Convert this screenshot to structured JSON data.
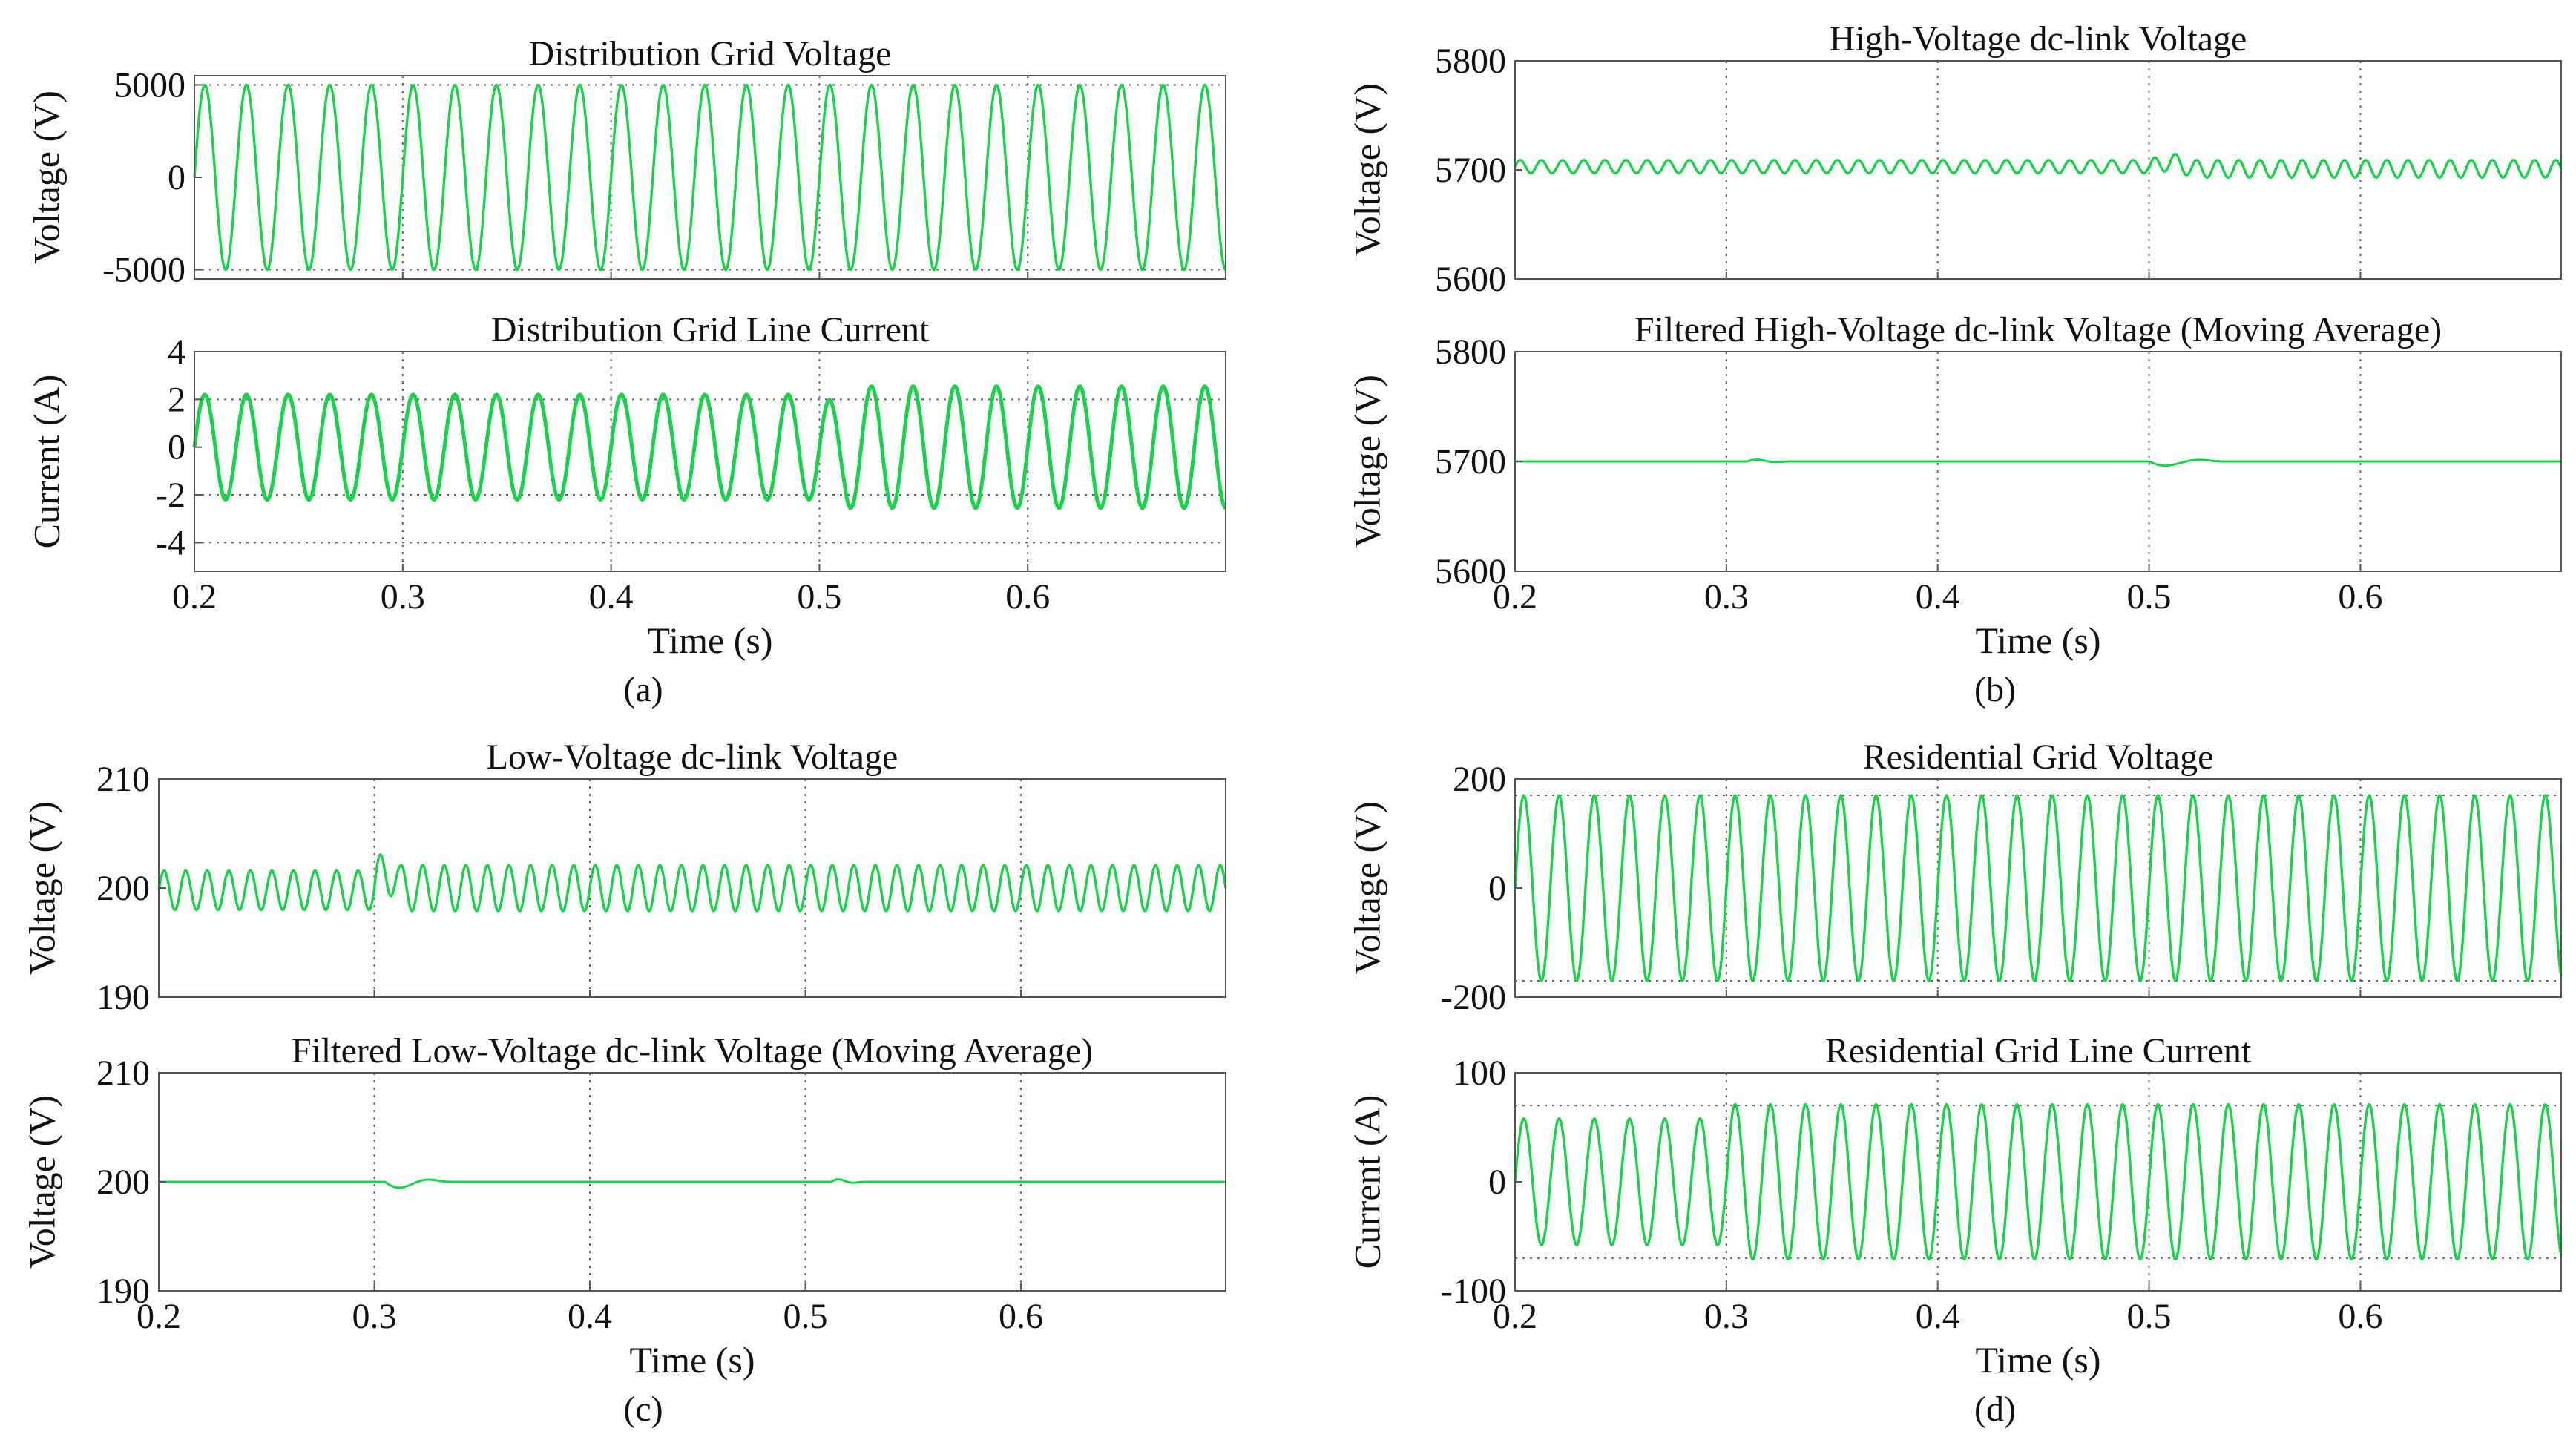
{
  "colors": {
    "trace": "#19d24a",
    "frame": "#555555",
    "grid": "#666666"
  },
  "panel_labels": [
    "(a)",
    "(b)",
    "(c)",
    "(d)"
  ],
  "chart_data": [
    {
      "id": "a1",
      "type": "line",
      "title": "Distribution Grid Voltage",
      "ylabel": "Voltage (V)",
      "xlabel": "",
      "xlim": [
        0.2,
        0.695
      ],
      "ylim": [
        -5500,
        5500
      ],
      "xticks": [
        0.2,
        0.3,
        0.4,
        0.5,
        0.6
      ],
      "xtick_labels": [],
      "yticks": [
        5000,
        0,
        -5000
      ],
      "ytick_labels": [
        "5000",
        "0",
        "-5000"
      ],
      "ygrid": [
        5000,
        -5000
      ],
      "series": [
        {
          "name": "grid voltage",
          "kind": "sine",
          "freq_hz": 50,
          "segments": [
            {
              "from": 0.2,
              "to": 0.695,
              "amplitude": 5000,
              "offset": 0
            }
          ]
        }
      ]
    },
    {
      "id": "a2",
      "type": "line",
      "title": "Distribution Grid Line Current",
      "ylabel": "Current (A)",
      "xlabel": "Time (s)",
      "xlim": [
        0.2,
        0.695
      ],
      "ylim": [
        -5.2,
        4
      ],
      "xticks": [
        0.2,
        0.3,
        0.4,
        0.5,
        0.6
      ],
      "xtick_labels": [
        "0.2",
        "0.3",
        "0.4",
        "0.5",
        "0.6"
      ],
      "yticks": [
        4,
        2,
        0,
        -2,
        -4
      ],
      "ytick_labels": [
        "4",
        "2",
        "0",
        "-2",
        "-4"
      ],
      "ygrid": [
        2,
        -2,
        -4
      ],
      "series": [
        {
          "name": "line current",
          "kind": "sine",
          "freq_hz": 50,
          "segments": [
            {
              "from": 0.2,
              "to": 0.5,
              "amplitude": 2.2,
              "offset": 0
            },
            {
              "from": 0.5,
              "to": 0.695,
              "amplitude": 2.55,
              "offset": 0
            }
          ],
          "transients": [
            {
              "t": 0.5,
              "duration": 0.012,
              "magnitude": -0.6,
              "kind": "bump"
            }
          ]
        }
      ]
    },
    {
      "id": "b1",
      "type": "line",
      "title": "High-Voltage dc-link Voltage",
      "ylabel": "Voltage (V)",
      "xlabel": "",
      "xlim": [
        0.2,
        0.695
      ],
      "ylim": [
        5600,
        5800
      ],
      "xticks": [
        0.2,
        0.3,
        0.4,
        0.5,
        0.6
      ],
      "xtick_labels": [],
      "yticks": [
        5800,
        5700,
        5600
      ],
      "ytick_labels": [
        "5800",
        "5700",
        "5600"
      ],
      "ygrid": [],
      "series": [
        {
          "name": "hv dc-link",
          "kind": "sine",
          "freq_hz": 100,
          "segments": [
            {
              "from": 0.2,
              "to": 0.5,
              "amplitude": 6,
              "offset": 5703
            },
            {
              "from": 0.5,
              "to": 0.695,
              "amplitude": 8,
              "offset": 5701
            }
          ],
          "transients": [
            {
              "t": 0.5,
              "duration": 0.02,
              "magnitude": 6,
              "kind": "bump"
            }
          ]
        }
      ]
    },
    {
      "id": "b2",
      "type": "line",
      "title": "Filtered High-Voltage dc-link Voltage (Moving Average)",
      "ylabel": "Voltage (V)",
      "xlabel": "Time (s)",
      "xlim": [
        0.2,
        0.695
      ],
      "ylim": [
        5600,
        5800
      ],
      "xticks": [
        0.2,
        0.3,
        0.4,
        0.5,
        0.6
      ],
      "xtick_labels": [
        "0.2",
        "0.3",
        "0.4",
        "0.5",
        "0.6"
      ],
      "yticks": [
        5800,
        5700,
        5600
      ],
      "ytick_labels": [
        "5800",
        "5700",
        "5600"
      ],
      "ygrid": [],
      "series": [
        {
          "name": "filtered hv dc-link",
          "kind": "flat",
          "segments": [
            {
              "from": 0.2,
              "to": 0.695,
              "amplitude": 0,
              "offset": 5700
            }
          ],
          "transients": [
            {
              "t": 0.31,
              "duration": 0.02,
              "magnitude": 2,
              "kind": "ring"
            },
            {
              "t": 0.5,
              "duration": 0.035,
              "magnitude": -5,
              "kind": "ring"
            }
          ]
        }
      ]
    },
    {
      "id": "c1",
      "type": "line",
      "title": "Low-Voltage dc-link Voltage",
      "ylabel": "Voltage (V)",
      "xlabel": "",
      "xlim": [
        0.2,
        0.695
      ],
      "ylim": [
        190,
        210
      ],
      "xticks": [
        0.2,
        0.3,
        0.4,
        0.5,
        0.6
      ],
      "xtick_labels": [],
      "yticks": [
        210,
        200,
        190
      ],
      "ytick_labels": [
        "210",
        "200",
        "190"
      ],
      "ygrid": [],
      "series": [
        {
          "name": "lv dc-link",
          "kind": "sine",
          "freq_hz": 100,
          "segments": [
            {
              "from": 0.2,
              "to": 0.3,
              "amplitude": 1.8,
              "offset": 199.8
            },
            {
              "from": 0.3,
              "to": 0.695,
              "amplitude": 2.1,
              "offset": 200
            }
          ],
          "transients": [
            {
              "t": 0.3,
              "duration": 0.012,
              "magnitude": 1.5,
              "kind": "bump"
            }
          ]
        }
      ]
    },
    {
      "id": "c2",
      "type": "line",
      "title": "Filtered Low-Voltage dc-link Voltage (Moving Average)",
      "ylabel": "Voltage (V)",
      "xlabel": "Time (s)",
      "xlim": [
        0.2,
        0.695
      ],
      "ylim": [
        190,
        210
      ],
      "xticks": [
        0.2,
        0.3,
        0.4,
        0.5,
        0.6
      ],
      "xtick_labels": [
        "0.2",
        "0.3",
        "0.4",
        "0.5",
        "0.6"
      ],
      "yticks": [
        210,
        200,
        190
      ],
      "ytick_labels": [
        "210",
        "200",
        "190"
      ],
      "ygrid": [],
      "series": [
        {
          "name": "filtered lv dc-link",
          "kind": "flat",
          "segments": [
            {
              "from": 0.2,
              "to": 0.695,
              "amplitude": 0,
              "offset": 200
            }
          ],
          "transients": [
            {
              "t": 0.305,
              "duration": 0.03,
              "magnitude": -0.7,
              "kind": "ring"
            },
            {
              "t": 0.512,
              "duration": 0.015,
              "magnitude": 0.3,
              "kind": "ring"
            }
          ]
        }
      ]
    },
    {
      "id": "d1",
      "type": "line",
      "title": "Residential Grid Voltage",
      "ylabel": "Voltage (V)",
      "xlabel": "",
      "xlim": [
        0.2,
        0.695
      ],
      "ylim": [
        -200,
        200
      ],
      "xticks": [
        0.2,
        0.3,
        0.4,
        0.5,
        0.6
      ],
      "xtick_labels": [],
      "yticks": [
        200,
        0,
        -200
      ],
      "ytick_labels": [
        "200",
        "0",
        "-200"
      ],
      "ygrid": [
        170,
        -170
      ],
      "series": [
        {
          "name": "residential voltage",
          "kind": "sine",
          "freq_hz": 60,
          "segments": [
            {
              "from": 0.2,
              "to": 0.695,
              "amplitude": 170,
              "offset": 0
            }
          ]
        }
      ]
    },
    {
      "id": "d2",
      "type": "line",
      "title": "Residential Grid Line Current",
      "ylabel": "Current (A)",
      "xlabel": "Time (s)",
      "xlim": [
        0.2,
        0.695
      ],
      "ylim": [
        -100,
        100
      ],
      "xticks": [
        0.2,
        0.3,
        0.4,
        0.5,
        0.6
      ],
      "xtick_labels": [
        "0.2",
        "0.3",
        "0.4",
        "0.5",
        "0.6"
      ],
      "yticks": [
        100,
        0,
        -100
      ],
      "ytick_labels": [
        "100",
        "0",
        "-100"
      ],
      "ygrid": [
        70,
        -70
      ],
      "series": [
        {
          "name": "residential current",
          "kind": "sine",
          "freq_hz": 60,
          "segments": [
            {
              "from": 0.2,
              "to": 0.3,
              "amplitude": 58,
              "offset": 0
            },
            {
              "from": 0.3,
              "to": 0.695,
              "amplitude": 71,
              "offset": 0
            }
          ]
        }
      ]
    }
  ]
}
